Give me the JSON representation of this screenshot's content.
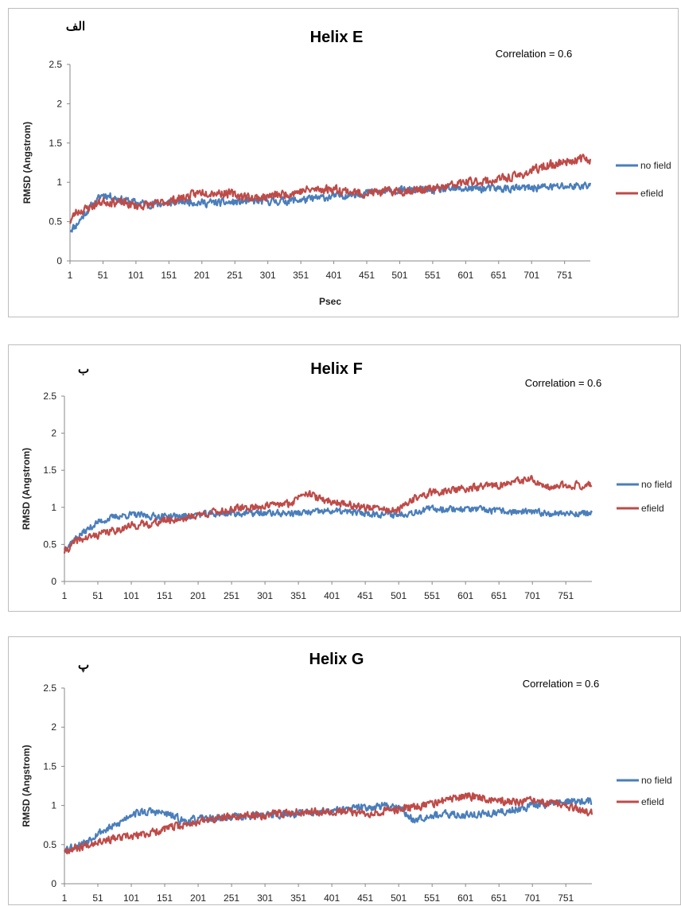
{
  "chart_data": [
    {
      "type": "line",
      "tag": "الف",
      "title": "Helix E",
      "annotation": "Correlation = 0.6",
      "xlabel": "Psec",
      "ylabel": "RMSD (Angstrom)",
      "ylim": [
        0,
        2.5
      ],
      "yticks": [
        "0",
        "0.5",
        "1",
        "1.5",
        "2",
        "2.5"
      ],
      "xticks": [
        "1",
        "51",
        "101",
        "151",
        "201",
        "251",
        "301",
        "351",
        "401",
        "451",
        "501",
        "551",
        "601",
        "651",
        "701",
        "751"
      ],
      "xlim": [
        1,
        790
      ],
      "legend_position": "right",
      "series": [
        {
          "name": "no field",
          "color": "#4a7ebb",
          "seed": 11,
          "x": [
            1,
            10,
            25,
            51,
            80,
            101,
            130,
            151,
            180,
            201,
            240,
            280,
            320,
            360,
            400,
            440,
            480,
            520,
            560,
            600,
            640,
            680,
            720,
            760,
            785
          ],
          "y": [
            0.4,
            0.45,
            0.62,
            0.85,
            0.78,
            0.74,
            0.72,
            0.74,
            0.76,
            0.74,
            0.74,
            0.76,
            0.76,
            0.78,
            0.82,
            0.86,
            0.88,
            0.9,
            0.9,
            0.92,
            0.92,
            0.92,
            0.94,
            0.95,
            0.96
          ],
          "noise": 0.045
        },
        {
          "name": "efield",
          "color": "#be4b48",
          "seed": 23,
          "x": [
            1,
            10,
            25,
            51,
            80,
            101,
            130,
            151,
            180,
            201,
            240,
            280,
            320,
            360,
            400,
            440,
            480,
            520,
            560,
            600,
            640,
            680,
            720,
            760,
            785
          ],
          "y": [
            0.5,
            0.62,
            0.66,
            0.76,
            0.74,
            0.7,
            0.72,
            0.76,
            0.82,
            0.88,
            0.86,
            0.8,
            0.84,
            0.9,
            0.92,
            0.86,
            0.88,
            0.9,
            0.92,
            1.0,
            1.02,
            1.08,
            1.2,
            1.28,
            1.3
          ],
          "noise": 0.05
        }
      ]
    },
    {
      "type": "line",
      "tag": "ب",
      "title": "Helix F",
      "annotation": "Correlation = 0.6",
      "xlabel": "",
      "ylabel": "RMSD (Angstrom)",
      "ylim": [
        0,
        2.5
      ],
      "yticks": [
        "0",
        "0.5",
        "1",
        "1.5",
        "2",
        "2.5"
      ],
      "xticks": [
        "1",
        "51",
        "101",
        "151",
        "201",
        "251",
        "301",
        "351",
        "401",
        "451",
        "501",
        "551",
        "601",
        "651",
        "701",
        "751"
      ],
      "xlim": [
        1,
        790
      ],
      "legend_position": "right",
      "series": [
        {
          "name": "no field",
          "color": "#4a7ebb",
          "seed": 37,
          "x": [
            1,
            20,
            51,
            80,
            101,
            130,
            151,
            180,
            201,
            250,
            300,
            350,
            400,
            450,
            500,
            550,
            600,
            650,
            700,
            750,
            785
          ],
          "y": [
            0.45,
            0.6,
            0.8,
            0.88,
            0.9,
            0.88,
            0.88,
            0.88,
            0.9,
            0.92,
            0.92,
            0.92,
            0.95,
            0.92,
            0.9,
            0.98,
            0.98,
            0.95,
            0.93,
            0.92,
            0.92
          ],
          "noise": 0.04
        },
        {
          "name": "efield",
          "color": "#be4b48",
          "seed": 41,
          "x": [
            1,
            20,
            51,
            80,
            101,
            130,
            151,
            180,
            201,
            250,
            300,
            340,
            360,
            380,
            400,
            450,
            500,
            520,
            550,
            600,
            650,
            700,
            720,
            750,
            785
          ],
          "y": [
            0.4,
            0.55,
            0.63,
            0.7,
            0.75,
            0.78,
            0.82,
            0.85,
            0.9,
            0.97,
            1.02,
            1.05,
            1.22,
            1.12,
            1.08,
            1.0,
            0.95,
            1.1,
            1.2,
            1.25,
            1.3,
            1.38,
            1.25,
            1.3,
            1.3
          ],
          "noise": 0.045
        }
      ]
    },
    {
      "type": "line",
      "tag": "پ",
      "title": "Helix G",
      "annotation": "Correlation = 0.6",
      "xlabel": "",
      "ylabel": "RMSD (Angstrom)",
      "ylim": [
        0,
        2.5
      ],
      "yticks": [
        "0",
        "0.5",
        "1",
        "1.5",
        "2",
        "2.5"
      ],
      "xticks": [
        "1",
        "51",
        "101",
        "151",
        "201",
        "251",
        "301",
        "351",
        "401",
        "451",
        "501",
        "551",
        "601",
        "651",
        "701",
        "751"
      ],
      "xlim": [
        1,
        790
      ],
      "legend_position": "right",
      "series": [
        {
          "name": "no field",
          "color": "#4a7ebb",
          "seed": 53,
          "x": [
            1,
            25,
            51,
            80,
            101,
            130,
            151,
            180,
            201,
            250,
            300,
            350,
            400,
            450,
            500,
            520,
            550,
            600,
            650,
            700,
            750,
            785
          ],
          "y": [
            0.45,
            0.5,
            0.65,
            0.75,
            0.9,
            0.92,
            0.9,
            0.8,
            0.82,
            0.85,
            0.88,
            0.9,
            0.92,
            0.98,
            1.0,
            0.82,
            0.88,
            0.88,
            0.9,
            1.0,
            1.05,
            1.05
          ],
          "noise": 0.045
        },
        {
          "name": "efield",
          "color": "#be4b48",
          "seed": 67,
          "x": [
            1,
            25,
            51,
            80,
            101,
            130,
            151,
            180,
            201,
            250,
            300,
            350,
            400,
            450,
            500,
            550,
            600,
            630,
            650,
            700,
            750,
            785
          ],
          "y": [
            0.43,
            0.47,
            0.55,
            0.58,
            0.6,
            0.65,
            0.7,
            0.75,
            0.8,
            0.85,
            0.88,
            0.92,
            0.93,
            0.9,
            0.95,
            1.02,
            1.12,
            1.1,
            1.05,
            1.05,
            1.0,
            0.9
          ],
          "noise": 0.045
        }
      ]
    }
  ]
}
